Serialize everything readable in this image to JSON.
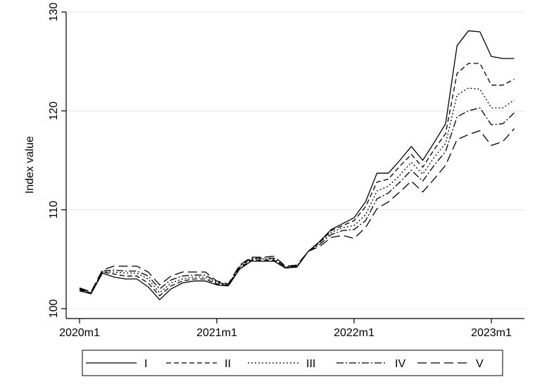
{
  "chart_data": {
    "type": "line",
    "title": "",
    "xlabel": "",
    "ylabel": "Index value",
    "xlim": [
      0,
      39
    ],
    "ylim": [
      99,
      130
    ],
    "yticks": [
      100,
      110,
      120,
      130
    ],
    "xticks": [
      {
        "x": 0,
        "label": "2020m1"
      },
      {
        "x": 12,
        "label": "2021m1"
      },
      {
        "x": 24,
        "label": "2022m1"
      },
      {
        "x": 36,
        "label": "2023m1"
      }
    ],
    "grid": "horizontal",
    "legend_position": "bottom",
    "x": [
      "2020m1",
      "2020m2",
      "2020m3",
      "2020m4",
      "2020m5",
      "2020m6",
      "2020m7",
      "2020m8",
      "2020m9",
      "2020m10",
      "2020m11",
      "2020m12",
      "2021m1",
      "2021m2",
      "2021m3",
      "2021m4",
      "2021m5",
      "2021m6",
      "2021m7",
      "2021m8",
      "2021m9",
      "2021m10",
      "2021m11",
      "2021m12",
      "2022m1",
      "2022m2",
      "2022m3",
      "2022m4",
      "2022m5",
      "2022m6",
      "2022m7",
      "2022m8",
      "2022m9",
      "2022m10",
      "2022m11",
      "2022m12",
      "2023m1",
      "2023m2",
      "2023m3"
    ],
    "series": [
      {
        "name": "I",
        "dash": "",
        "values": [
          101.8,
          101.5,
          103.6,
          103.2,
          103.0,
          103.0,
          102.2,
          100.9,
          102.0,
          102.6,
          102.8,
          102.8,
          102.4,
          102.3,
          104.0,
          104.8,
          104.8,
          104.8,
          104.1,
          104.2,
          105.8,
          106.8,
          108.0,
          108.6,
          109.2,
          110.8,
          113.7,
          113.7,
          115.0,
          116.4,
          115.0,
          116.8,
          118.7,
          126.6,
          128.1,
          128.0,
          125.5,
          125.3,
          125.3
        ]
      },
      {
        "name": "II",
        "dash": "7 4",
        "values": [
          101.9,
          101.5,
          103.7,
          103.5,
          103.3,
          103.3,
          102.6,
          101.3,
          102.3,
          102.8,
          103.0,
          103.0,
          102.5,
          102.3,
          104.1,
          104.9,
          104.9,
          104.9,
          104.1,
          104.2,
          105.8,
          106.7,
          107.9,
          108.4,
          108.9,
          110.3,
          112.8,
          113.1,
          114.4,
          115.6,
          114.3,
          116.1,
          117.7,
          123.8,
          124.8,
          124.8,
          122.6,
          122.6,
          123.2
        ]
      },
      {
        "name": "III",
        "dash": "2 3",
        "values": [
          101.9,
          101.6,
          103.7,
          103.7,
          103.6,
          103.6,
          103.0,
          101.6,
          102.6,
          103.0,
          103.2,
          103.2,
          102.6,
          102.4,
          104.2,
          105.0,
          105.0,
          105.0,
          104.2,
          104.3,
          105.8,
          106.7,
          107.7,
          108.2,
          108.4,
          109.5,
          111.9,
          112.4,
          113.5,
          114.8,
          113.6,
          115.3,
          116.7,
          121.6,
          122.3,
          122.2,
          120.3,
          120.3,
          121.1
        ]
      },
      {
        "name": "IV",
        "dash": "10 3 2 3",
        "values": [
          102.0,
          101.6,
          103.8,
          103.9,
          103.8,
          103.8,
          103.3,
          102.0,
          102.9,
          103.3,
          103.4,
          103.4,
          102.7,
          102.4,
          104.3,
          105.1,
          105.1,
          105.1,
          104.2,
          104.3,
          105.8,
          106.5,
          107.5,
          107.9,
          108.0,
          108.9,
          111.1,
          111.7,
          112.8,
          114.0,
          112.9,
          114.5,
          115.9,
          119.4,
          120.0,
          120.3,
          118.6,
          118.7,
          119.8
        ]
      },
      {
        "name": "V",
        "dash": "13 6",
        "values": [
          102.1,
          101.7,
          103.9,
          104.3,
          104.3,
          104.3,
          103.7,
          102.4,
          103.3,
          103.7,
          103.7,
          103.7,
          102.8,
          102.5,
          104.4,
          105.2,
          105.2,
          105.3,
          104.3,
          104.4,
          105.8,
          106.3,
          107.2,
          107.4,
          107.1,
          108.2,
          110.1,
          110.8,
          111.8,
          112.9,
          111.8,
          113.1,
          114.5,
          117.1,
          117.6,
          118.0,
          116.5,
          116.9,
          118.2
        ]
      }
    ]
  }
}
